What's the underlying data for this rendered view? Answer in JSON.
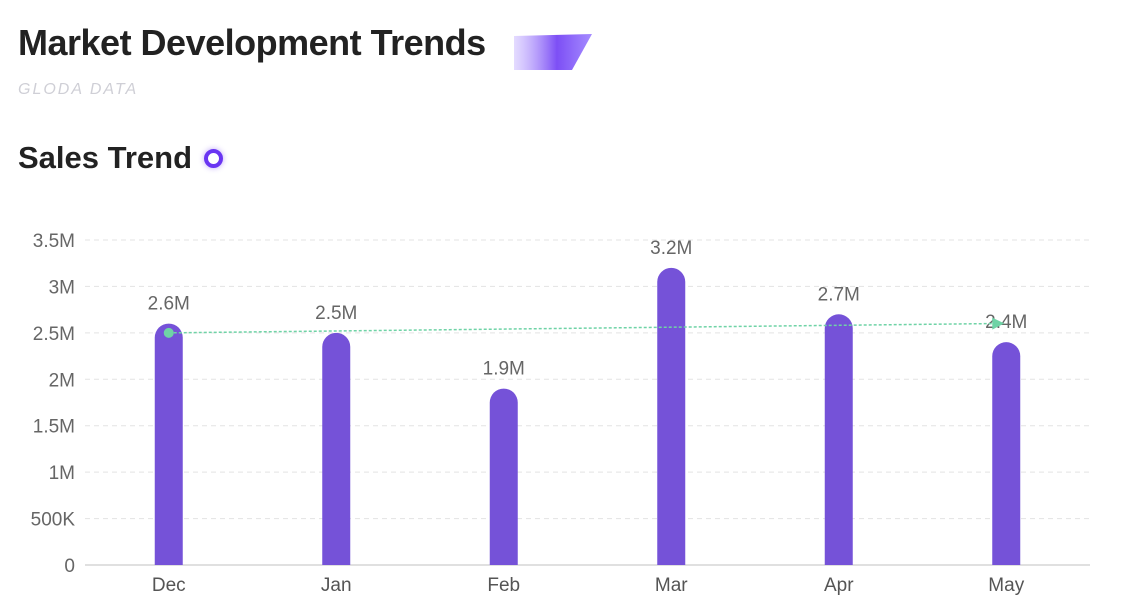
{
  "header": {
    "title": "Market Development Trends",
    "subtitle": "GLODA DATA"
  },
  "section": {
    "title": "Sales Trend"
  },
  "colors": {
    "bar": "#7552d8",
    "trend": "#6fd3a6",
    "accent": "#6a35f2"
  },
  "chart_data": {
    "type": "bar",
    "categories": [
      "Dec",
      "Jan",
      "Feb",
      "Mar",
      "Apr",
      "May"
    ],
    "values": [
      2.6,
      2.5,
      1.9,
      3.2,
      2.7,
      2.4
    ],
    "value_labels": [
      "2.6M",
      "2.5M",
      "1.9M",
      "3.2M",
      "2.7M",
      "2.4M"
    ],
    "unit": "M",
    "ylim": [
      0,
      3.5
    ],
    "yticks": [
      0,
      0.5,
      1,
      1.5,
      2,
      2.5,
      3,
      3.5
    ],
    "ytick_labels": [
      "0",
      "500K",
      "1M",
      "1.5M",
      "2M",
      "2.5M",
      "3M",
      "3.5M"
    ],
    "trend_line": {
      "start": 2.5,
      "end": 2.6
    },
    "grid": true,
    "legend": "none"
  }
}
